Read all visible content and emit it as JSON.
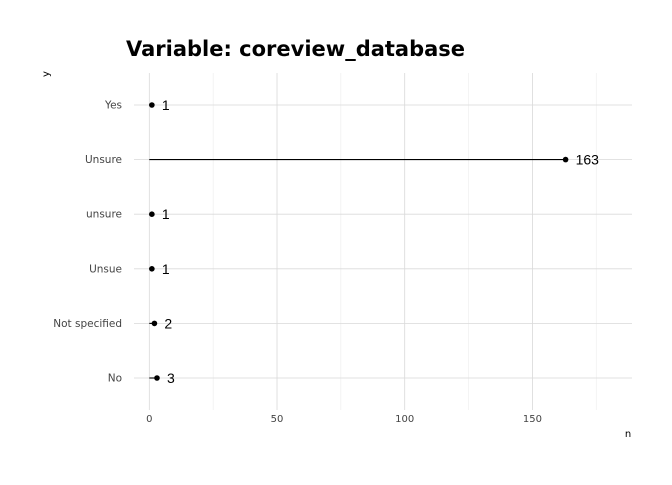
{
  "chart_data": {
    "type": "lollipop",
    "title": "Variable: coreview_database",
    "xlabel": "n",
    "ylabel": "y",
    "categories": [
      "Yes",
      "Unsure",
      "unsure",
      "Unsue",
      "Not specified",
      "No"
    ],
    "values": [
      1,
      163,
      1,
      1,
      2,
      3
    ],
    "data_labels": [
      "1",
      "163",
      "1",
      "1",
      "2",
      "3"
    ],
    "xlim": [
      -6,
      189
    ],
    "x_ticks": [
      0,
      50,
      100,
      150
    ],
    "x_minor_ticks": [
      25,
      75,
      125,
      175
    ],
    "grid": true,
    "legend": "none",
    "colors": {
      "line": "#000000",
      "point": "#000000",
      "grid": "#d9d9d9"
    }
  }
}
